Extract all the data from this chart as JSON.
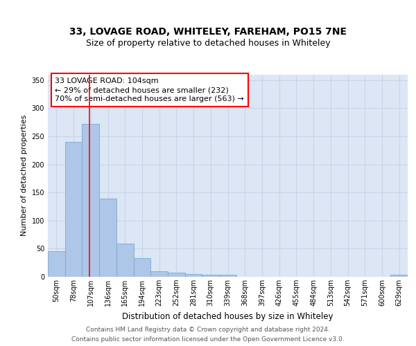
{
  "title_line1": "33, LOVAGE ROAD, WHITELEY, FAREHAM, PO15 7NE",
  "title_line2": "Size of property relative to detached houses in Whiteley",
  "xlabel": "Distribution of detached houses by size in Whiteley",
  "ylabel": "Number of detached properties",
  "categories": [
    "50sqm",
    "78sqm",
    "107sqm",
    "136sqm",
    "165sqm",
    "194sqm",
    "223sqm",
    "252sqm",
    "281sqm",
    "310sqm",
    "339sqm",
    "368sqm",
    "397sqm",
    "426sqm",
    "455sqm",
    "484sqm",
    "513sqm",
    "542sqm",
    "571sqm",
    "600sqm",
    "629sqm"
  ],
  "values": [
    46,
    240,
    272,
    139,
    59,
    33,
    10,
    7,
    5,
    4,
    4,
    0,
    0,
    0,
    0,
    0,
    0,
    0,
    0,
    0,
    4
  ],
  "bar_color": "#aec6e8",
  "bar_edge_color": "#7aaace",
  "grid_color": "#c8d4e8",
  "background_color": "#dce6f5",
  "fig_background": "#ffffff",
  "annotation_text_line1": "33 LOVAGE ROAD: 104sqm",
  "annotation_text_line2": "← 29% of detached houses are smaller (232)",
  "annotation_text_line3": "70% of semi-detached houses are larger (563) →",
  "red_line_x": 1.93,
  "ylim": [
    0,
    360
  ],
  "yticks": [
    0,
    50,
    100,
    150,
    200,
    250,
    300,
    350
  ],
  "footer_line1": "Contains HM Land Registry data © Crown copyright and database right 2024.",
  "footer_line2": "Contains public sector information licensed under the Open Government Licence v3.0.",
  "title1_fontsize": 10,
  "title2_fontsize": 9,
  "xlabel_fontsize": 8.5,
  "ylabel_fontsize": 8,
  "tick_fontsize": 7,
  "annotation_fontsize": 8,
  "footer_fontsize": 6.5
}
